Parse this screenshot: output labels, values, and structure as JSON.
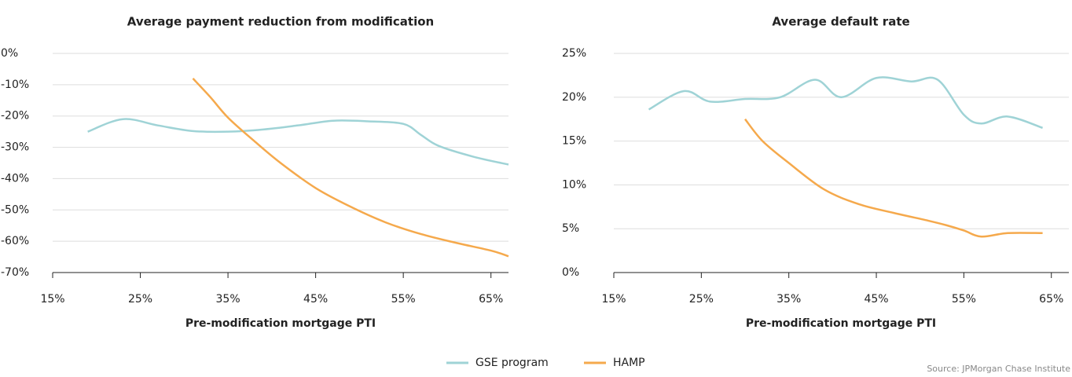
{
  "chart_data": [
    {
      "type": "line",
      "title": "Average payment reduction from modification",
      "x_label": "Pre-modification mortgage PTI",
      "xlim": [
        15,
        67
      ],
      "ylim": [
        -70,
        0
      ],
      "grid": true,
      "xticks": [
        {
          "value": 15,
          "label": "15%"
        },
        {
          "value": 25,
          "label": "25%"
        },
        {
          "value": 35,
          "label": "35%"
        },
        {
          "value": 45,
          "label": "45%"
        },
        {
          "value": 55,
          "label": "55%"
        },
        {
          "value": 65,
          "label": "65%"
        }
      ],
      "yticks": [
        {
          "value": 0,
          "label": "0%"
        },
        {
          "value": -10,
          "label": "-10%"
        },
        {
          "value": -20,
          "label": "-20%"
        },
        {
          "value": -30,
          "label": "-30%"
        },
        {
          "value": -40,
          "label": "-40%"
        },
        {
          "value": -50,
          "label": "-50%"
        },
        {
          "value": -60,
          "label": "-60%"
        },
        {
          "value": -70,
          "label": "-70%"
        }
      ],
      "series": [
        {
          "name": "GSE program",
          "color": "#9fd3d6",
          "x": [
            19,
            23,
            27,
            31,
            35,
            39,
            43,
            47,
            51,
            55,
            57,
            59,
            63,
            67
          ],
          "values": [
            -25,
            -21,
            -23,
            -24.8,
            -25,
            -24.3,
            -23,
            -21.5,
            -21.7,
            -22.5,
            -26,
            -29.5,
            -33,
            -35.5
          ]
        },
        {
          "name": "HAMP",
          "color": "#f5a94c",
          "x": [
            31,
            33,
            35,
            38,
            41,
            45,
            49,
            53,
            57,
            61,
            65,
            67
          ],
          "values": [
            -8,
            -14,
            -20.5,
            -28,
            -35,
            -43,
            -49,
            -54,
            -57.7,
            -60.5,
            -63,
            -64.8
          ]
        }
      ]
    },
    {
      "type": "line",
      "title": "Average default rate",
      "x_label": "Pre-modification mortgage PTI",
      "xlim": [
        15,
        67
      ],
      "ylim": [
        0,
        25
      ],
      "grid": true,
      "xticks": [
        {
          "value": 15,
          "label": "15%"
        },
        {
          "value": 25,
          "label": "25%"
        },
        {
          "value": 35,
          "label": "35%"
        },
        {
          "value": 45,
          "label": "45%"
        },
        {
          "value": 55,
          "label": "55%"
        },
        {
          "value": 65,
          "label": "65%"
        }
      ],
      "yticks": [
        {
          "value": 0,
          "label": "0%"
        },
        {
          "value": 5,
          "label": "5%"
        },
        {
          "value": 10,
          "label": "10%"
        },
        {
          "value": 15,
          "label": "15%"
        },
        {
          "value": 20,
          "label": "20%"
        },
        {
          "value": 25,
          "label": "25%"
        }
      ],
      "series": [
        {
          "name": "GSE program",
          "color": "#9fd3d6",
          "x": [
            19,
            23,
            26,
            30,
            34,
            38,
            41,
            45,
            49,
            52,
            55,
            57,
            60,
            64
          ],
          "values": [
            18.6,
            20.7,
            19.5,
            19.8,
            20,
            22,
            20,
            22.2,
            21.8,
            22,
            18,
            17,
            17.8,
            16.5
          ]
        },
        {
          "name": "HAMP",
          "color": "#f5a94c",
          "x": [
            30,
            32,
            35,
            39,
            43,
            47,
            51,
            53,
            55,
            57,
            60,
            64
          ],
          "values": [
            17.5,
            15,
            12.5,
            9.5,
            7.8,
            6.8,
            5.9,
            5.4,
            4.8,
            4.1,
            4.5,
            4.5
          ]
        }
      ]
    }
  ],
  "source": "Source: JPMorgan Chase Institute"
}
